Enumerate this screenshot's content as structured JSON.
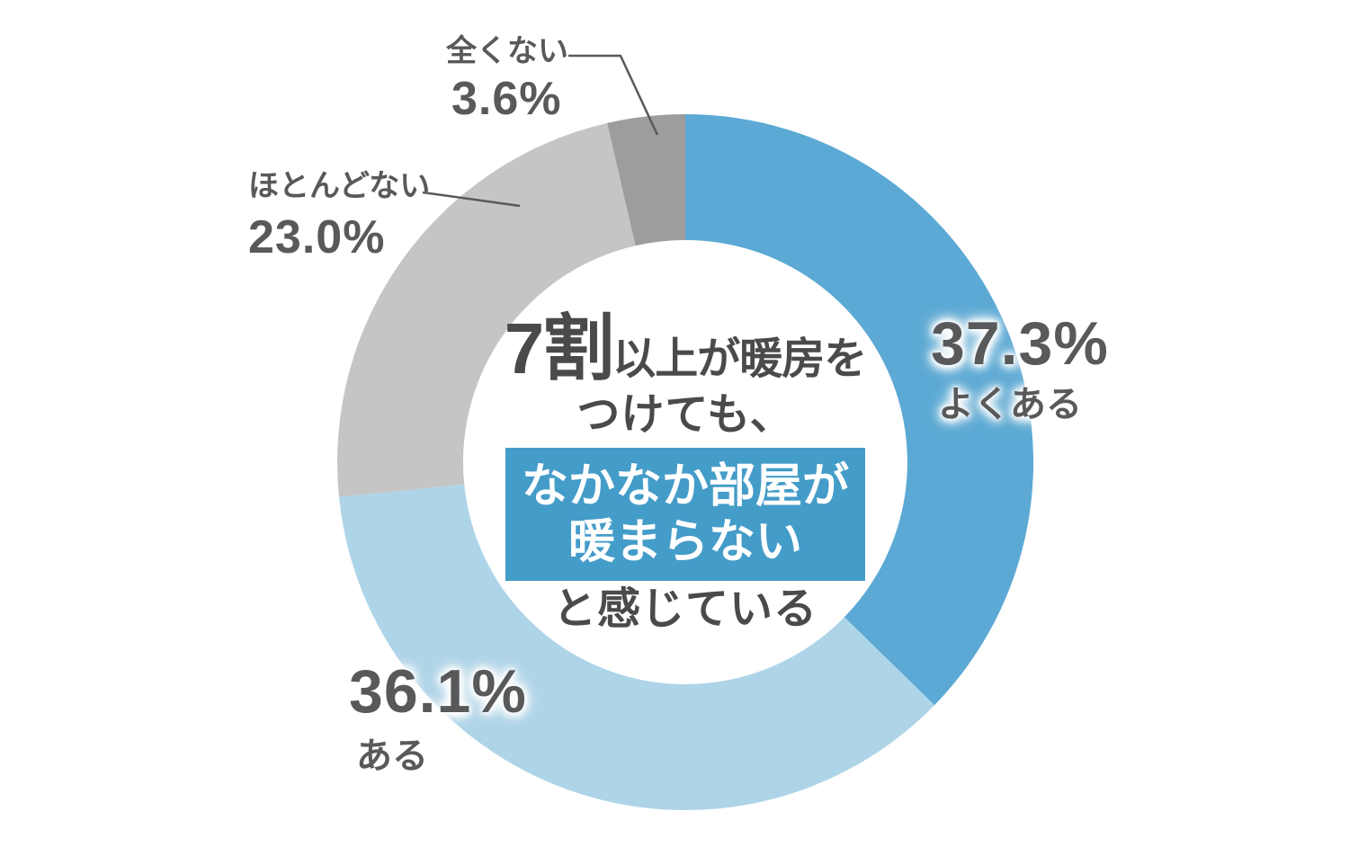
{
  "chart_data": {
    "type": "pie",
    "donut": true,
    "start_angle_deg": 0,
    "direction": "clockwise",
    "legend_position": "callouts-around-ring",
    "title": "7割以上が暖房をつけても、なかなか部屋が暖まらないと感じている",
    "total": 100,
    "segments": [
      {
        "label": "よくある",
        "value": 37.3,
        "percent_label": "37.3%",
        "color": "#5BA9D4"
      },
      {
        "label": "ある",
        "value": 36.1,
        "percent_label": "36.1%",
        "color": "#AED4E8"
      },
      {
        "label": "ほとんどない",
        "value": 23.0,
        "percent_label": "23.0%",
        "color": "#C5C5C5"
      },
      {
        "label": "全くない",
        "value": 3.6,
        "percent_label": "3.6%",
        "color": "#9D9D9D"
      }
    ]
  },
  "center": {
    "line1_emphasis": "7割",
    "line1_rest": "以上が暖房を",
    "line2": "つけても、",
    "highlight_line1": "なかなか部屋が",
    "highlight_line2": "暖まらない",
    "line3": "と感じている",
    "highlight_bg_color": "#449CC9",
    "highlight_text_color": "#FFFFFF",
    "text_color": "#4A4A4C"
  },
  "colors": {
    "percent_text": "#58595B",
    "label_text": "#595959",
    "leader_line": "#595959",
    "background": "#FFFFFF"
  }
}
